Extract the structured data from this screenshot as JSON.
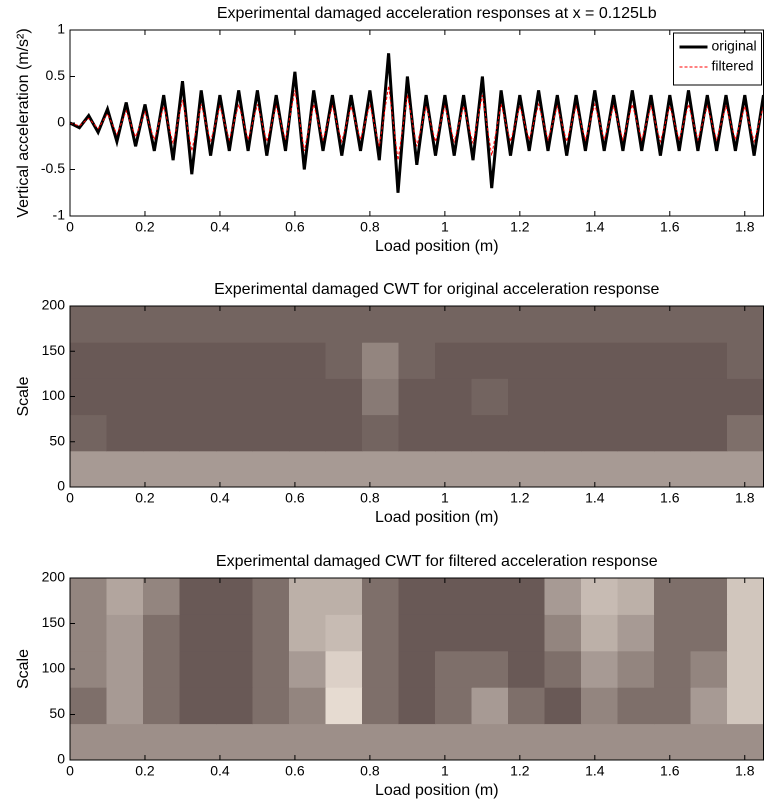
{
  "chart_data": [
    {
      "type": "line",
      "title": "Experimental damaged acceleration responses at x = 0.125Lb",
      "xlabel": "Load position (m)",
      "ylabel": "Vertical acceleration (m/s²)",
      "x": [
        0,
        0.025,
        0.05,
        0.075,
        0.1,
        0.125,
        0.15,
        0.175,
        0.2,
        0.225,
        0.25,
        0.275,
        0.3,
        0.325,
        0.35,
        0.375,
        0.4,
        0.425,
        0.45,
        0.475,
        0.5,
        0.525,
        0.55,
        0.575,
        0.6,
        0.625,
        0.65,
        0.675,
        0.7,
        0.725,
        0.75,
        0.775,
        0.8,
        0.825,
        0.85,
        0.875,
        0.9,
        0.925,
        0.95,
        0.975,
        1.0,
        1.025,
        1.05,
        1.075,
        1.1,
        1.125,
        1.15,
        1.175,
        1.2,
        1.225,
        1.25,
        1.275,
        1.3,
        1.325,
        1.35,
        1.375,
        1.4,
        1.425,
        1.45,
        1.475,
        1.5,
        1.525,
        1.55,
        1.575,
        1.6,
        1.625,
        1.65,
        1.675,
        1.7,
        1.725,
        1.75,
        1.775,
        1.8,
        1.825,
        1.85
      ],
      "series": [
        {
          "name": "original",
          "color": "#000000",
          "style": "solid",
          "values": [
            0,
            -0.05,
            0.08,
            -0.1,
            0.15,
            -0.2,
            0.22,
            -0.25,
            0.2,
            -0.3,
            0.3,
            -0.4,
            0.45,
            -0.55,
            0.35,
            -0.35,
            0.3,
            -0.3,
            0.35,
            -0.3,
            0.35,
            -0.35,
            0.3,
            -0.3,
            0.55,
            -0.5,
            0.35,
            -0.3,
            0.3,
            -0.35,
            0.3,
            -0.3,
            0.35,
            -0.4,
            0.75,
            -0.75,
            0.5,
            -0.45,
            0.3,
            -0.35,
            0.3,
            -0.35,
            0.3,
            -0.4,
            0.5,
            -0.7,
            0.35,
            -0.35,
            0.3,
            -0.3,
            0.35,
            -0.3,
            0.3,
            -0.35,
            0.3,
            -0.3,
            0.35,
            -0.3,
            0.3,
            -0.3,
            0.35,
            -0.3,
            0.3,
            -0.35,
            0.3,
            -0.3,
            0.35,
            -0.3,
            0.3,
            -0.3,
            0.3,
            -0.3,
            0.3,
            -0.35,
            0.3
          ]
        },
        {
          "name": "filtered",
          "color": "#ff0000",
          "style": "dashed",
          "values": [
            0,
            -0.03,
            0.05,
            -0.06,
            0.1,
            -0.12,
            0.13,
            -0.15,
            0.12,
            -0.18,
            0.18,
            -0.22,
            0.25,
            -0.3,
            0.2,
            -0.2,
            0.18,
            -0.18,
            0.2,
            -0.18,
            0.2,
            -0.2,
            0.18,
            -0.18,
            0.35,
            -0.3,
            0.2,
            -0.18,
            0.18,
            -0.2,
            0.18,
            -0.18,
            0.2,
            -0.25,
            0.4,
            -0.4,
            0.3,
            -0.25,
            0.18,
            -0.2,
            0.18,
            -0.2,
            0.18,
            -0.22,
            0.3,
            -0.35,
            0.2,
            -0.2,
            0.18,
            -0.18,
            0.2,
            -0.18,
            0.18,
            -0.2,
            0.18,
            -0.18,
            0.2,
            -0.18,
            0.18,
            -0.18,
            0.2,
            -0.18,
            0.18,
            -0.2,
            0.18,
            -0.18,
            0.2,
            -0.18,
            0.18,
            -0.18,
            0.18,
            -0.18,
            0.18,
            -0.2,
            0.18
          ]
        }
      ],
      "xlim": [
        0,
        1.85
      ],
      "xticks": [
        0,
        0.2,
        0.4,
        0.6,
        0.8,
        1,
        1.2,
        1.4,
        1.6,
        1.8
      ],
      "ylim": [
        -1,
        1
      ],
      "yticks": [
        -1,
        -0.5,
        0,
        0.5,
        1
      ],
      "legend": "upper right",
      "grid": false
    },
    {
      "type": "heatmap",
      "title": "Experimental damaged CWT for original acceleration response",
      "xlabel": "Load position (m)",
      "ylabel": "Scale",
      "xlim": [
        0,
        1.85
      ],
      "xticks": [
        0,
        0.2,
        0.4,
        0.6,
        0.8,
        1,
        1.2,
        1.4,
        1.6,
        1.8
      ],
      "ylim": [
        0,
        200
      ],
      "yticks": [
        0,
        50,
        100,
        150,
        200
      ],
      "colormap": [
        "#2a1818",
        "#fbf1e6"
      ],
      "z": [
        [
          0.6,
          0.6,
          0.6,
          0.6,
          0.6,
          0.6,
          0.6,
          0.6,
          0.6,
          0.6,
          0.6,
          0.6,
          0.6,
          0.6,
          0.6,
          0.6,
          0.6,
          0.6,
          0.6
        ],
        [
          0.35,
          0.3,
          0.3,
          0.3,
          0.3,
          0.3,
          0.3,
          0.3,
          0.35,
          0.3,
          0.3,
          0.3,
          0.3,
          0.3,
          0.3,
          0.3,
          0.3,
          0.3,
          0.4
        ],
        [
          0.3,
          0.3,
          0.3,
          0.3,
          0.3,
          0.3,
          0.3,
          0.3,
          0.45,
          0.3,
          0.3,
          0.35,
          0.3,
          0.3,
          0.3,
          0.3,
          0.3,
          0.3,
          0.3
        ],
        [
          0.3,
          0.3,
          0.3,
          0.3,
          0.3,
          0.3,
          0.3,
          0.35,
          0.5,
          0.35,
          0.3,
          0.3,
          0.3,
          0.3,
          0.3,
          0.3,
          0.3,
          0.3,
          0.35
        ],
        [
          0.35,
          0.35,
          0.35,
          0.35,
          0.35,
          0.35,
          0.35,
          0.35,
          0.35,
          0.35,
          0.35,
          0.35,
          0.35,
          0.35,
          0.35,
          0.35,
          0.35,
          0.35,
          0.35
        ]
      ]
    },
    {
      "type": "heatmap",
      "title": "Experimental damaged CWT for filtered acceleration response",
      "xlabel": "Load position (m)",
      "ylabel": "Scale",
      "xlim": [
        0,
        1.85
      ],
      "xticks": [
        0,
        0.2,
        0.4,
        0.6,
        0.8,
        1,
        1.2,
        1.4,
        1.6,
        1.8
      ],
      "ylim": [
        0,
        200
      ],
      "yticks": [
        0,
        50,
        100,
        150,
        200
      ],
      "colormap": [
        "#2a1818",
        "#fbf1e6"
      ],
      "z": [
        [
          0.55,
          0.55,
          0.55,
          0.55,
          0.55,
          0.55,
          0.55,
          0.55,
          0.55,
          0.55,
          0.55,
          0.55,
          0.55,
          0.55,
          0.55,
          0.55,
          0.55,
          0.55,
          0.55
        ],
        [
          0.4,
          0.6,
          0.4,
          0.3,
          0.3,
          0.4,
          0.5,
          0.9,
          0.4,
          0.3,
          0.4,
          0.6,
          0.4,
          0.3,
          0.5,
          0.4,
          0.4,
          0.6,
          0.8
        ],
        [
          0.5,
          0.6,
          0.4,
          0.3,
          0.3,
          0.4,
          0.6,
          0.85,
          0.4,
          0.3,
          0.4,
          0.4,
          0.3,
          0.4,
          0.6,
          0.5,
          0.4,
          0.5,
          0.8
        ],
        [
          0.5,
          0.6,
          0.4,
          0.3,
          0.3,
          0.4,
          0.7,
          0.75,
          0.4,
          0.3,
          0.3,
          0.3,
          0.3,
          0.5,
          0.7,
          0.6,
          0.4,
          0.4,
          0.8
        ],
        [
          0.5,
          0.65,
          0.5,
          0.3,
          0.3,
          0.4,
          0.7,
          0.7,
          0.4,
          0.3,
          0.3,
          0.3,
          0.3,
          0.6,
          0.75,
          0.7,
          0.4,
          0.4,
          0.8
        ]
      ]
    }
  ]
}
